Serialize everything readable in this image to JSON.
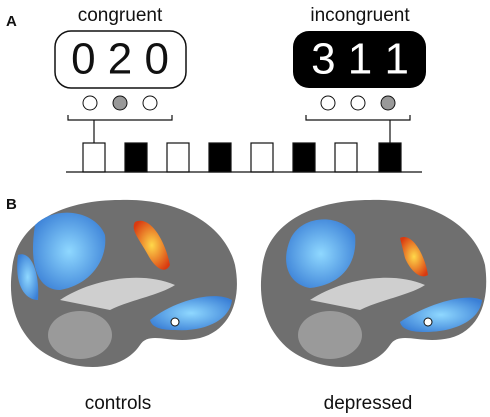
{
  "panels": [
    {
      "label": "A",
      "stimuli": [
        {
          "label": "congruent",
          "digits": "0 2 0"
        },
        {
          "label": "incongruent",
          "digits": "3 1 1"
        }
      ]
    },
    {
      "label": "B",
      "images": [
        {
          "label": "controls"
        },
        {
          "label": "depressed"
        }
      ]
    }
  ]
}
